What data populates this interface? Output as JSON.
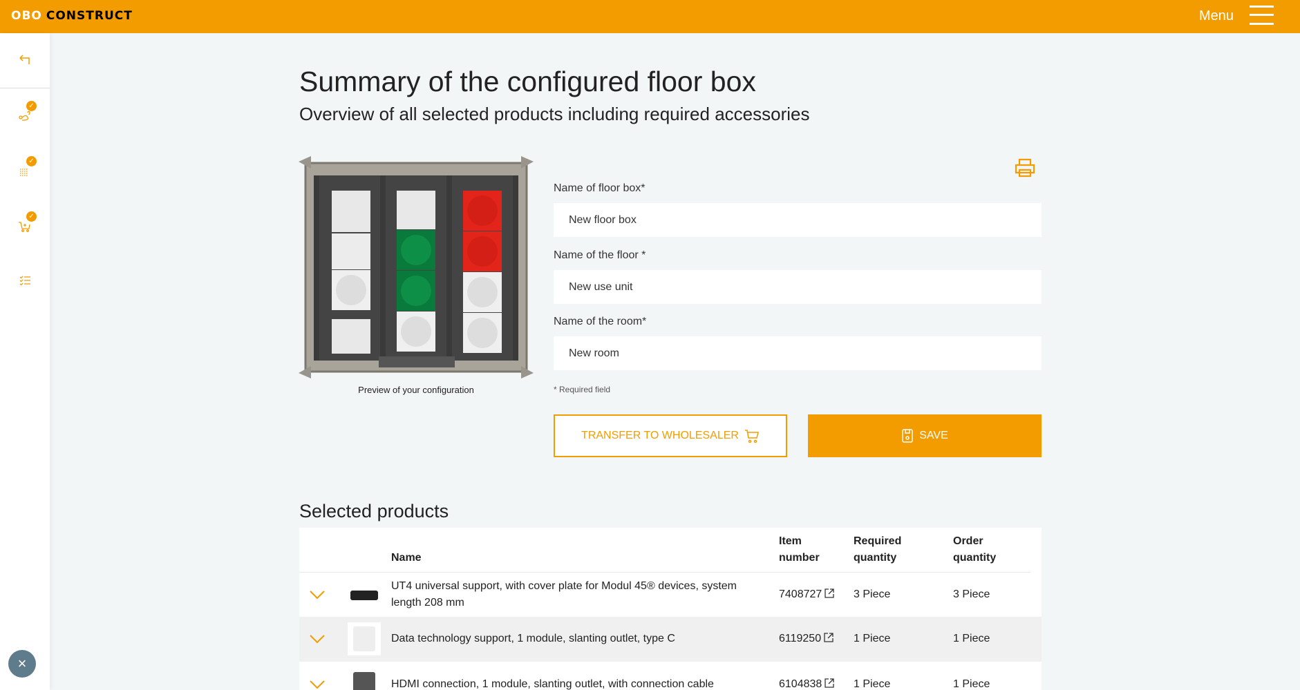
{
  "header": {
    "logo_obo": "OBO",
    "logo_construct": "CONSTRUCT",
    "menu_label": "Menu"
  },
  "colors": {
    "accent": "#f39c00",
    "background": "#f3f6f7",
    "close_button": "#5e7c8c"
  },
  "sidebar": {
    "items": [
      {
        "icon": "back-arrow-icon"
      },
      {
        "icon": "route-icon",
        "completed": true
      },
      {
        "icon": "grid-icon",
        "completed": true
      },
      {
        "icon": "cart-add-icon",
        "completed": true
      },
      {
        "icon": "checklist-icon",
        "completed": false
      }
    ],
    "close_icon": "×"
  },
  "page": {
    "title": "Summary of the configured floor box",
    "subtitle": "Overview of all selected products including required accessories"
  },
  "preview": {
    "caption": "Preview of your configuration"
  },
  "form": {
    "floor_box_label": "Name of floor box*",
    "floor_box_value": "New floor box",
    "floor_label": "Name of the floor *",
    "floor_value": "New use unit",
    "room_label": "Name of the room*",
    "room_value": "New room",
    "required_note": "* Required field",
    "transfer_label": "TRANSFER TO WHOLESALER",
    "save_label": "SAVE"
  },
  "products": {
    "title": "Selected products",
    "columns": {
      "name": "Name",
      "item_1": "Item",
      "item_2": "number",
      "req_1": "Required",
      "req_2": "quantity",
      "ord_1": "Order",
      "ord_2": "quantity"
    },
    "rows": [
      {
        "name": "UT4 universal support, with cover plate for Modul 45® devices, system length 208 mm",
        "item": "7408727",
        "required": "3 Piece",
        "order": "3 Piece"
      },
      {
        "name": "Data technology support, 1 module, slanting outlet, type C",
        "item": "6119250",
        "required": "1 Piece",
        "order": "1 Piece"
      },
      {
        "name": "HDMI connection, 1 module, slanting outlet, with connection cable",
        "item": "6104838",
        "required": "1 Piece",
        "order": "1 Piece"
      }
    ]
  }
}
